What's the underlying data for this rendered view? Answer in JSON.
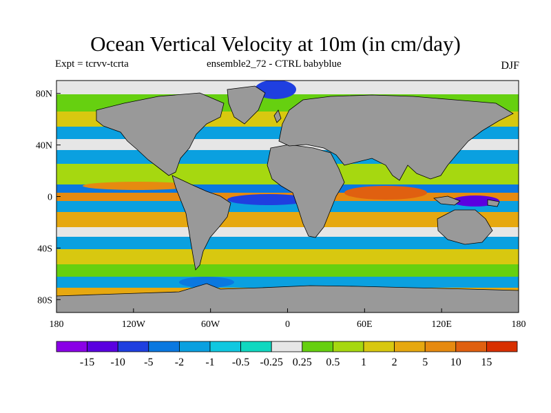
{
  "title": "Ocean Vertical Velocity at 10m (in cm/day)",
  "subtitle_left": "Expt = tcrvv-tcrta",
  "subtitle_center": "ensemble2_72 - CTRL babyblue",
  "subtitle_right": "DJF",
  "map": {
    "projection": "cylindrical-equidistant",
    "lon_range": [
      -180,
      180
    ],
    "lat_range": [
      -90,
      90
    ],
    "land_color": "#999999",
    "lat_ticks": [
      {
        "value": 80,
        "label": "80N"
      },
      {
        "value": 40,
        "label": "40N"
      },
      {
        "value": 0,
        "label": "0"
      },
      {
        "value": -40,
        "label": "40S"
      },
      {
        "value": -80,
        "label": "80S"
      }
    ],
    "lon_ticks": [
      {
        "value": -180,
        "label": "180"
      },
      {
        "value": -120,
        "label": "120W"
      },
      {
        "value": -60,
        "label": "60W"
      },
      {
        "value": 0,
        "label": "0"
      },
      {
        "value": 60,
        "label": "60E"
      },
      {
        "value": 120,
        "label": "120E"
      },
      {
        "value": 180,
        "label": "180"
      }
    ]
  },
  "colorbar": {
    "colors": [
      "#8a00e6",
      "#5a00e0",
      "#1f3fe0",
      "#0a78e0",
      "#0aa0e0",
      "#10c8e0",
      "#10d8c0",
      "#e6e6e6",
      "#66d010",
      "#a6d810",
      "#d8c810",
      "#e6a810",
      "#e68a10",
      "#e06010",
      "#d83000"
    ],
    "labels": [
      "-15",
      "-10",
      "-5",
      "-2",
      "-1",
      "-0.5",
      "-0.25",
      "0.25",
      "0.5",
      "1",
      "2",
      "5",
      "10",
      "15"
    ]
  }
}
